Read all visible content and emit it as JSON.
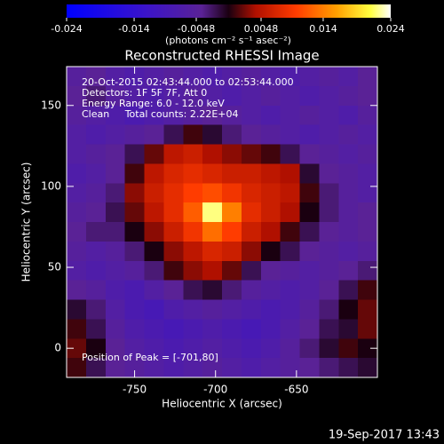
{
  "chart_data": {
    "type": "heatmap",
    "title": "Reconstructed RHESSI Image",
    "x_label": "Heliocentric X (arcsec)",
    "y_label": "Heliocentric Y (arcsec)",
    "colorbar_label": "(photons cm⁻² s⁻¹ asec⁻²)",
    "annotations": [
      "20-Oct-2015 02:43:44.000 to 02:53:44.000",
      "Detectors: 1F 5F 7F, Att 0",
      "Energy Range: 6.0 - 12.0 keV",
      "Clean     Total counts: 2.22E+04"
    ],
    "peak_annotation": "Position of Peak = [-701,80]",
    "footer": "19-Sep-2017 13:43",
    "xlim": [
      -792,
      -600
    ],
    "ylim": [
      -18,
      174
    ],
    "xticks": [
      -750,
      -700,
      -650
    ],
    "yticks": [
      0,
      50,
      100,
      150
    ],
    "zlim": [
      -0.024,
      0.024
    ],
    "zticks": [
      -0.024,
      -0.014,
      -0.0048,
      0.0048,
      0.014,
      0.024
    ],
    "colorscale": [
      [
        -0.024,
        "#0000ff"
      ],
      [
        -0.012,
        "#3c14c8"
      ],
      [
        -0.004,
        "#5a2296"
      ],
      [
        0,
        "#1a0010"
      ],
      [
        0.004,
        "#b01000"
      ],
      [
        0.01,
        "#ff3c00"
      ],
      [
        0.016,
        "#ffa000"
      ],
      [
        0.021,
        "#ffff40"
      ],
      [
        0.024,
        "#ffffff"
      ]
    ],
    "z": [
      [
        -0.005,
        -0.004,
        -0.006,
        -0.007,
        -0.006,
        -0.005,
        -0.006,
        -0.007,
        -0.006,
        -0.005,
        -0.006,
        -0.007,
        -0.006,
        -0.005,
        -0.006,
        -0.004
      ],
      [
        -0.004,
        -0.003,
        -0.005,
        -0.006,
        -0.007,
        -0.006,
        -0.005,
        -0.006,
        -0.007,
        -0.006,
        -0.005,
        -0.006,
        -0.007,
        -0.006,
        -0.005,
        -0.004
      ],
      [
        -0.005,
        -0.006,
        -0.007,
        -0.008,
        -0.007,
        -0.006,
        -0.005,
        -0.004,
        -0.005,
        -0.006,
        -0.007,
        -0.006,
        -0.005,
        -0.006,
        -0.007,
        -0.005
      ],
      [
        -0.006,
        -0.007,
        -0.006,
        -0.005,
        -0.004,
        -0.002,
        0.001,
        -0.001,
        -0.003,
        -0.004,
        -0.005,
        -0.006,
        -0.007,
        -0.006,
        -0.005,
        -0.006
      ],
      [
        -0.006,
        -0.005,
        -0.004,
        -0.002,
        0.002,
        0.005,
        0.006,
        0.004,
        0.003,
        0.002,
        0.001,
        -0.002,
        -0.004,
        -0.005,
        -0.006,
        -0.005
      ],
      [
        -0.007,
        -0.006,
        -0.004,
        0.001,
        0.005,
        0.007,
        0.008,
        0.007,
        0.006,
        0.006,
        0.005,
        0.004,
        -0.001,
        -0.004,
        -0.005,
        -0.006
      ],
      [
        -0.006,
        -0.005,
        -0.003,
        0.003,
        0.006,
        0.008,
        0.01,
        0.011,
        0.009,
        0.007,
        0.006,
        0.005,
        0.001,
        -0.003,
        -0.005,
        -0.006
      ],
      [
        -0.005,
        -0.004,
        -0.002,
        0.002,
        0.005,
        0.008,
        0.012,
        0.022,
        0.014,
        0.008,
        0.006,
        0.004,
        0,
        -0.003,
        -0.005,
        -0.004
      ],
      [
        -0.004,
        -0.003,
        -0.003,
        0,
        0.003,
        0.006,
        0.009,
        0.013,
        0.01,
        0.006,
        0.004,
        0.001,
        -0.002,
        -0.004,
        -0.005,
        -0.004
      ],
      [
        -0.005,
        -0.006,
        -0.005,
        -0.003,
        0,
        0.003,
        0.005,
        0.007,
        0.006,
        0.003,
        0,
        -0.002,
        -0.004,
        -0.005,
        -0.006,
        -0.005
      ],
      [
        -0.006,
        -0.007,
        -0.006,
        -0.005,
        -0.003,
        0.001,
        0.003,
        0.004,
        0.002,
        -0.002,
        -0.004,
        -0.005,
        -0.006,
        -0.005,
        -0.004,
        -0.003
      ],
      [
        -0.004,
        -0.005,
        -0.007,
        -0.008,
        -0.006,
        -0.004,
        -0.002,
        -0.001,
        -0.003,
        -0.005,
        -0.006,
        -0.007,
        -0.006,
        -0.004,
        -0.002,
        0.001
      ],
      [
        -0.001,
        -0.003,
        -0.006,
        -0.008,
        -0.009,
        -0.007,
        -0.006,
        -0.005,
        -0.006,
        -0.007,
        -0.008,
        -0.007,
        -0.005,
        -0.003,
        0,
        0.002
      ],
      [
        0.001,
        -0.002,
        -0.005,
        -0.007,
        -0.008,
        -0.009,
        -0.008,
        -0.007,
        -0.008,
        -0.009,
        -0.008,
        -0.006,
        -0.004,
        -0.002,
        -0.001,
        0.002
      ],
      [
        0.002,
        0,
        -0.004,
        -0.006,
        -0.007,
        -0.008,
        -0.007,
        -0.006,
        -0.007,
        -0.008,
        -0.007,
        -0.005,
        -0.003,
        -0.001,
        0.001,
        0
      ],
      [
        0.001,
        -0.002,
        -0.004,
        -0.005,
        -0.006,
        -0.007,
        -0.006,
        -0.005,
        -0.006,
        -0.007,
        -0.006,
        -0.005,
        -0.004,
        -0.003,
        -0.002,
        -0.001
      ]
    ]
  }
}
